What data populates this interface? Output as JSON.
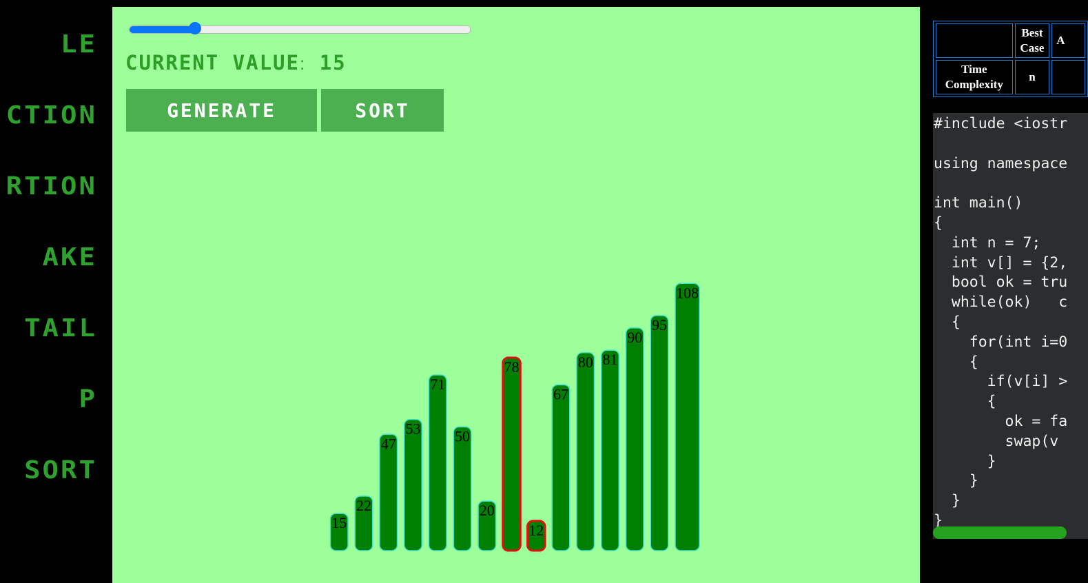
{
  "nav": {
    "items": [
      {
        "label": "LE"
      },
      {
        "label": "CTION"
      },
      {
        "label": "RTION"
      },
      {
        "label": "AKE"
      },
      {
        "label": "TAIL"
      },
      {
        "label": "P"
      },
      {
        "label": "SORT"
      }
    ]
  },
  "controls": {
    "slider_value": 15,
    "slider_min": 5,
    "slider_max": 60,
    "current_value_label": "CURRENT VALUE",
    "current_value_sep": ":",
    "current_value": "15",
    "generate_label": "GENERATE",
    "sort_label": "SORT"
  },
  "colors": {
    "bar": "#008000",
    "bar_outline": "#3ee0d0",
    "highlight_outline": "#e01010",
    "background": "#9cff9a",
    "accent": "#0a75f4"
  },
  "chart_data": {
    "type": "bar",
    "values": [
      15,
      22,
      47,
      53,
      71,
      50,
      20,
      78,
      12,
      67,
      80,
      81,
      90,
      95,
      108
    ],
    "highlighted_indices": [
      7,
      8
    ]
  },
  "complexity_table": {
    "headers": [
      "",
      "Best Case",
      "A"
    ],
    "rows": [
      {
        "label": "Time Complexity",
        "best": "n"
      }
    ]
  },
  "code": {
    "lines": [
      "#include <iostr",
      "",
      "using namespace",
      "",
      "int main()",
      "{",
      "  int n = 7;",
      "  int v[] = {2,",
      "  bool ok = tru",
      "  while(ok)   c",
      "  {",
      "    for(int i=0",
      "    {",
      "      if(v[i] >",
      "      {",
      "        ok = fa",
      "        swap(v",
      "      }",
      "    }",
      "  }",
      "}"
    ]
  }
}
